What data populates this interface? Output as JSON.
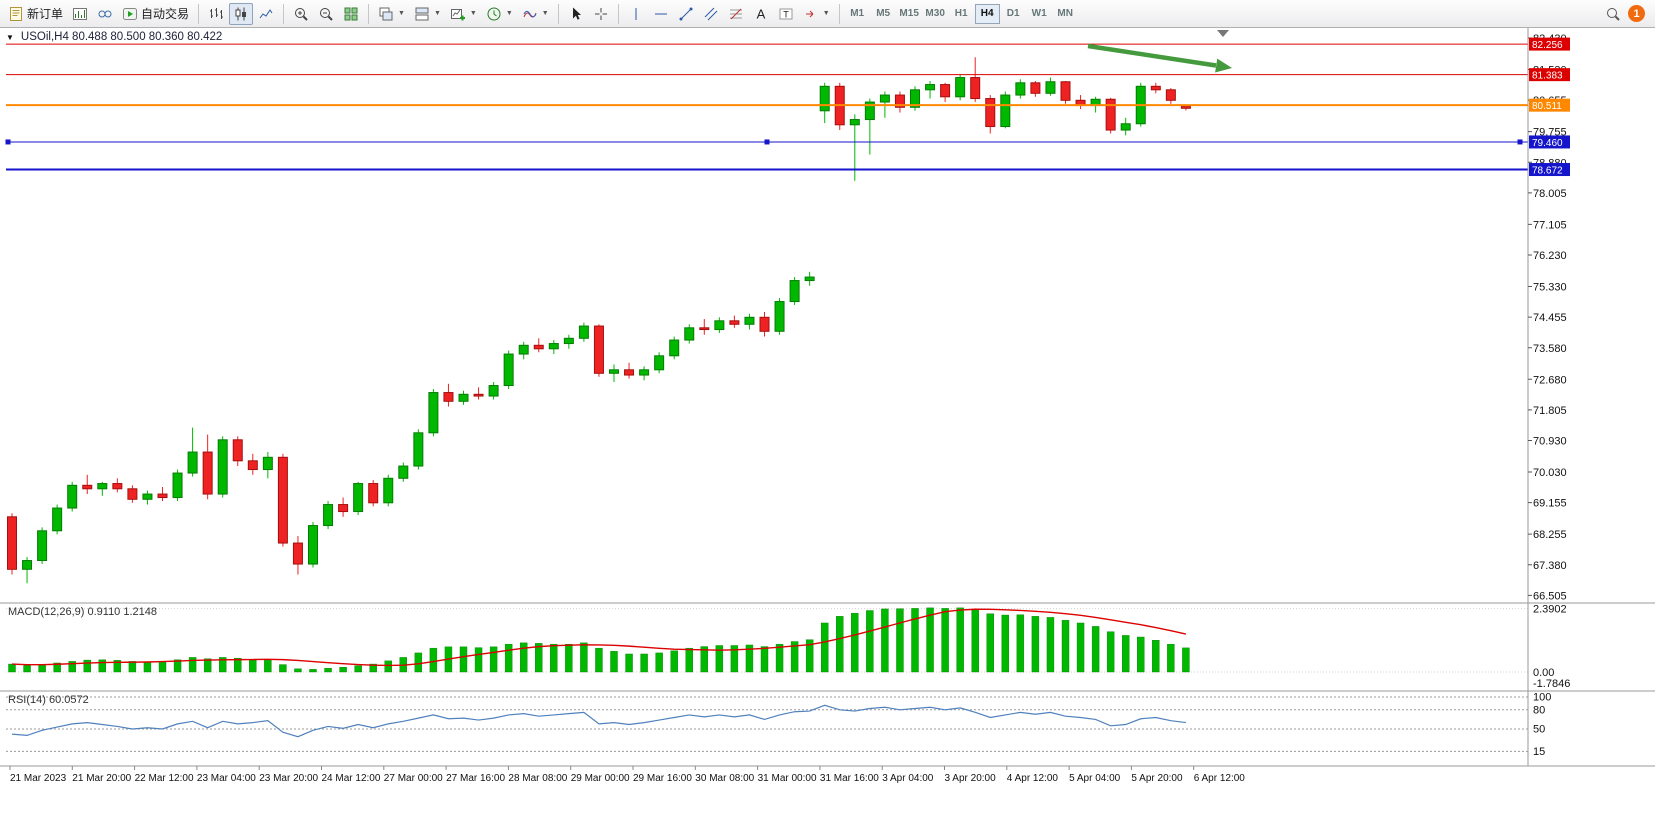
{
  "toolbar": {
    "new_order_label": "新订单",
    "auto_trading_label": "自动交易",
    "notification_count": "1",
    "badge_color": "#f06a10",
    "timeframes": [
      "M1",
      "M5",
      "M15",
      "M30",
      "H1",
      "H4",
      "D1",
      "W1",
      "MN"
    ],
    "active_timeframe": "H4",
    "items": [
      {
        "kind": "btn",
        "name": "new-order-button",
        "icon": "new-order-icon",
        "label_key": "new_order_label"
      },
      {
        "kind": "btn",
        "name": "charts-window-button",
        "icon": "chart-window-icon"
      },
      {
        "kind": "btn",
        "name": "profiles-button",
        "icon": "profiles-icon"
      },
      {
        "kind": "btn",
        "name": "auto-trading-button",
        "icon": "auto-trading-icon",
        "label_key": "auto_trading_label"
      },
      {
        "kind": "sep"
      },
      {
        "kind": "btn",
        "name": "bar-chart-button",
        "icon": "bar-chart-icon"
      },
      {
        "kind": "btn",
        "name": "candlestick-chart-button",
        "icon": "candlestick-icon",
        "active": true
      },
      {
        "kind": "btn",
        "name": "line-chart-button",
        "icon": "line-chart-icon"
      },
      {
        "kind": "sep"
      },
      {
        "kind": "btn",
        "name": "zoom-in-button",
        "icon": "zoom-in-icon"
      },
      {
        "kind": "btn",
        "name": "zoom-out-button",
        "icon": "zoom-out-icon"
      },
      {
        "kind": "btn",
        "name": "tile-windows-button",
        "icon": "tile-windows-icon"
      },
      {
        "kind": "sep"
      },
      {
        "kind": "btn",
        "name": "cascade-windows-button",
        "icon": "cascade-icon",
        "dropdown": true
      },
      {
        "kind": "btn",
        "name": "arrange-windows-button",
        "icon": "arrange-icon",
        "dropdown": true
      },
      {
        "kind": "btn",
        "name": "new-chart-button",
        "icon": "new-chart-icon",
        "dropdown": true
      },
      {
        "kind": "btn",
        "name": "periods-button",
        "icon": "clock-icon",
        "dropdown": true
      },
      {
        "kind": "btn",
        "name": "indicators-button",
        "icon": "indicators-icon",
        "dropdown": true
      },
      {
        "kind": "sep"
      },
      {
        "kind": "btn",
        "name": "cursor-button",
        "icon": "cursor-icon"
      },
      {
        "kind": "btn",
        "name": "crosshair-button",
        "icon": "crosshair-icon"
      },
      {
        "kind": "sep"
      },
      {
        "kind": "btn",
        "name": "vertical-line-button",
        "icon": "vline-icon"
      },
      {
        "kind": "btn",
        "name": "horizontal-line-button",
        "icon": "hline-icon"
      },
      {
        "kind": "btn",
        "name": "trendline-button",
        "icon": "trendline-icon"
      },
      {
        "kind": "btn",
        "name": "channel-button",
        "icon": "channel-icon"
      },
      {
        "kind": "btn",
        "name": "fibonacci-button",
        "icon": "fibonacci-icon"
      },
      {
        "kind": "btn",
        "name": "text-button",
        "icon": "text-icon"
      },
      {
        "kind": "btn",
        "name": "label-button",
        "icon": "label-icon"
      },
      {
        "kind": "btn",
        "name": "shapes-button",
        "icon": "shapes-icon",
        "dropdown": true
      },
      {
        "kind": "sep"
      }
    ]
  },
  "chart": {
    "symbol": "USOil",
    "period": "H4",
    "title": "USOil,H4 80.488 80.500 80.360 80.422"
  },
  "chart_data": {
    "type": "candlestick",
    "symbol": "USOil",
    "timeframe": "H4",
    "ohlc_current": {
      "open": "80.488",
      "high": "80.500",
      "low": "80.360",
      "close": "80.422"
    },
    "price_axis_ticks": [
      "82.430",
      "81.530",
      "80.655",
      "79.755",
      "78.880",
      "78.005",
      "77.105",
      "76.230",
      "75.330",
      "74.455",
      "73.580",
      "72.680",
      "71.805",
      "70.930",
      "70.030",
      "69.155",
      "68.255",
      "67.380",
      "66.505"
    ],
    "time_axis_labels": [
      "21 Mar 2023",
      "21 Mar 20:00",
      "22 Mar 12:00",
      "23 Mar 04:00",
      "23 Mar 20:00",
      "24 Mar 12:00",
      "27 Mar 00:00",
      "27 Mar 16:00",
      "28 Mar 08:00",
      "29 Mar 00:00",
      "29 Mar 16:00",
      "30 Mar 08:00",
      "31 Mar 00:00",
      "31 Mar 16:00",
      "3 Apr 04:00",
      "3 Apr 20:00",
      "4 Apr 12:00",
      "5 Apr 04:00",
      "5 Apr 20:00",
      "6 Apr 12:00"
    ],
    "candles": [
      [
        68.75,
        68.85,
        67.1,
        67.25
      ],
      [
        67.25,
        67.6,
        66.85,
        67.5
      ],
      [
        67.5,
        68.45,
        67.4,
        68.35
      ],
      [
        68.35,
        69.1,
        68.25,
        69.0
      ],
      [
        69.0,
        69.75,
        68.9,
        69.65
      ],
      [
        69.65,
        69.95,
        69.4,
        69.55
      ],
      [
        69.55,
        69.75,
        69.35,
        69.7
      ],
      [
        69.7,
        69.85,
        69.45,
        69.55
      ],
      [
        69.55,
        69.65,
        69.15,
        69.25
      ],
      [
        69.25,
        69.5,
        69.1,
        69.4
      ],
      [
        69.4,
        69.6,
        69.2,
        69.3
      ],
      [
        69.3,
        70.1,
        69.2,
        70.0
      ],
      [
        70.0,
        71.3,
        69.9,
        70.6
      ],
      [
        70.6,
        71.1,
        69.25,
        69.4
      ],
      [
        69.4,
        71.05,
        69.3,
        70.95
      ],
      [
        70.95,
        71.05,
        70.2,
        70.35
      ],
      [
        70.35,
        70.55,
        69.95,
        70.1
      ],
      [
        70.1,
        70.6,
        69.85,
        70.45
      ],
      [
        70.45,
        70.55,
        67.9,
        68.0
      ],
      [
        68.0,
        68.2,
        67.1,
        67.4
      ],
      [
        67.4,
        68.6,
        67.3,
        68.5
      ],
      [
        68.5,
        69.2,
        68.4,
        69.1
      ],
      [
        69.1,
        69.3,
        68.75,
        68.9
      ],
      [
        68.9,
        69.75,
        68.8,
        69.7
      ],
      [
        69.7,
        69.8,
        69.05,
        69.15
      ],
      [
        69.15,
        69.95,
        69.05,
        69.85
      ],
      [
        69.85,
        70.3,
        69.75,
        70.2
      ],
      [
        70.2,
        71.25,
        70.1,
        71.15
      ],
      [
        71.15,
        72.4,
        71.05,
        72.3
      ],
      [
        72.3,
        72.55,
        71.9,
        72.05
      ],
      [
        72.05,
        72.35,
        71.95,
        72.25
      ],
      [
        72.25,
        72.45,
        72.1,
        72.2
      ],
      [
        72.2,
        72.6,
        72.1,
        72.5
      ],
      [
        72.5,
        73.5,
        72.4,
        73.4
      ],
      [
        73.4,
        73.75,
        73.25,
        73.65
      ],
      [
        73.65,
        73.85,
        73.45,
        73.55
      ],
      [
        73.55,
        73.8,
        73.4,
        73.7
      ],
      [
        73.7,
        73.95,
        73.55,
        73.85
      ],
      [
        73.85,
        74.3,
        73.75,
        74.2
      ],
      [
        74.2,
        74.25,
        72.75,
        72.85
      ],
      [
        72.85,
        73.1,
        72.6,
        72.95
      ],
      [
        72.95,
        73.15,
        72.7,
        72.8
      ],
      [
        72.8,
        73.05,
        72.65,
        72.95
      ],
      [
        72.95,
        73.45,
        72.85,
        73.35
      ],
      [
        73.35,
        73.9,
        73.25,
        73.8
      ],
      [
        73.8,
        74.25,
        73.7,
        74.15
      ],
      [
        74.15,
        74.4,
        73.95,
        74.1
      ],
      [
        74.1,
        74.45,
        74.0,
        74.35
      ],
      [
        74.35,
        74.5,
        74.15,
        74.25
      ],
      [
        74.25,
        74.55,
        74.1,
        74.45
      ],
      [
        74.45,
        74.6,
        73.9,
        74.05
      ],
      [
        74.05,
        75.0,
        73.95,
        74.9
      ],
      [
        74.9,
        75.6,
        74.8,
        75.5
      ],
      [
        75.5,
        75.75,
        75.35,
        75.6
      ],
      [
        80.35,
        81.15,
        80.0,
        81.05
      ],
      [
        81.05,
        81.15,
        79.8,
        79.95
      ],
      [
        79.95,
        80.25,
        78.35,
        80.1
      ],
      [
        80.1,
        80.7,
        79.1,
        80.6
      ],
      [
        80.6,
        80.9,
        80.15,
        80.8
      ],
      [
        80.8,
        80.9,
        80.3,
        80.45
      ],
      [
        80.45,
        81.05,
        80.35,
        80.95
      ],
      [
        80.95,
        81.2,
        80.7,
        81.1
      ],
      [
        81.1,
        81.15,
        80.6,
        80.75
      ],
      [
        80.75,
        81.4,
        80.65,
        81.3
      ],
      [
        81.3,
        81.88,
        80.6,
        80.7
      ],
      [
        80.7,
        80.8,
        79.7,
        79.9
      ],
      [
        79.9,
        80.9,
        79.85,
        80.8
      ],
      [
        80.8,
        81.25,
        80.7,
        81.15
      ],
      [
        81.15,
        81.2,
        80.75,
        80.85
      ],
      [
        80.85,
        81.3,
        80.78,
        81.18
      ],
      [
        81.18,
        81.2,
        80.55,
        80.65
      ],
      [
        80.65,
        80.8,
        80.4,
        80.5
      ],
      [
        80.5,
        80.75,
        80.3,
        80.68
      ],
      [
        80.68,
        80.72,
        79.7,
        79.8
      ],
      [
        79.8,
        80.15,
        79.65,
        79.98
      ],
      [
        79.98,
        81.15,
        79.9,
        81.05
      ],
      [
        81.05,
        81.15,
        80.85,
        80.95
      ],
      [
        80.95,
        81.0,
        80.55,
        80.65
      ],
      [
        80.488,
        80.5,
        80.36,
        80.422
      ]
    ],
    "hlines": [
      {
        "price": 82.256,
        "label": "82.256",
        "color": "#dd0000",
        "width": 1
      },
      {
        "price": 81.383,
        "label": "81.383",
        "color": "#dd0000",
        "width": 1
      },
      {
        "price": 80.511,
        "label": "80.511",
        "color": "#ff8800",
        "width": 2
      },
      {
        "price": 79.46,
        "label": "79.460",
        "color": "#1515cc",
        "width": 1,
        "selected": true
      },
      {
        "price": 78.672,
        "label": "78.672",
        "color": "#1515cc",
        "width": 2
      }
    ],
    "annotations": [
      {
        "type": "arrow",
        "name": "green-trend-arrow",
        "color": "#449a3c"
      }
    ],
    "colors": {
      "up": "#00b800",
      "up_border": "#067c06",
      "down": "#ee2222",
      "down_border": "#a60f0f",
      "rsi_line": "#4f81bd",
      "macd_hist": "#00b800",
      "macd_signal": "#dd0000"
    },
    "indicators": {
      "macd": {
        "label": "MACD(12,26,9) 0.9110 1.2148",
        "value_main": "0.9110",
        "value_signal": "1.2148",
        "scale": [
          {
            "v": 2.3902,
            "label": "2.3902"
          },
          {
            "v": 0,
            "label": "0.00"
          },
          {
            "v": -1.7846,
            "label": "-1.7846",
            "pin": "bottom"
          }
        ],
        "histogram": [
          0.3,
          0.25,
          0.28,
          0.34,
          0.4,
          0.45,
          0.46,
          0.44,
          0.4,
          0.38,
          0.4,
          0.46,
          0.55,
          0.5,
          0.55,
          0.52,
          0.48,
          0.46,
          0.28,
          0.12,
          0.1,
          0.14,
          0.18,
          0.24,
          0.3,
          0.42,
          0.55,
          0.72,
          0.9,
          0.95,
          0.95,
          0.92,
          0.95,
          1.05,
          1.1,
          1.08,
          1.05,
          1.05,
          1.1,
          0.9,
          0.78,
          0.68,
          0.68,
          0.72,
          0.8,
          0.9,
          0.96,
          1.0,
          1.0,
          1.02,
          0.96,
          1.05,
          1.15,
          1.22,
          1.85,
          2.1,
          2.22,
          2.32,
          2.38,
          2.39,
          2.4,
          2.42,
          2.4,
          2.42,
          2.36,
          2.2,
          2.15,
          2.16,
          2.1,
          2.06,
          1.95,
          1.85,
          1.72,
          1.52,
          1.38,
          1.32,
          1.2,
          1.05,
          0.911
        ]
      },
      "rsi": {
        "label": "RSI(14) 60.0572",
        "value": "60.0572",
        "levels": [
          100,
          80,
          50,
          15
        ],
        "scale_labels": [
          "100",
          "80",
          "50",
          "15"
        ],
        "values": [
          42,
          40,
          48,
          53,
          58,
          60,
          57,
          54,
          50,
          52,
          50,
          58,
          62,
          52,
          62,
          58,
          60,
          63,
          45,
          38,
          48,
          54,
          51,
          57,
          52,
          58,
          62,
          67,
          72,
          66,
          67,
          64,
          67,
          72,
          74,
          70,
          72,
          74,
          76,
          58,
          60,
          57,
          60,
          64,
          68,
          72,
          69,
          72,
          69,
          72,
          65,
          72,
          77,
          78,
          87,
          80,
          78,
          82,
          84,
          80,
          82,
          84,
          80,
          83,
          76,
          68,
          72,
          76,
          73,
          76,
          70,
          68,
          65,
          55,
          57,
          66,
          68,
          63,
          60.06
        ]
      }
    }
  }
}
